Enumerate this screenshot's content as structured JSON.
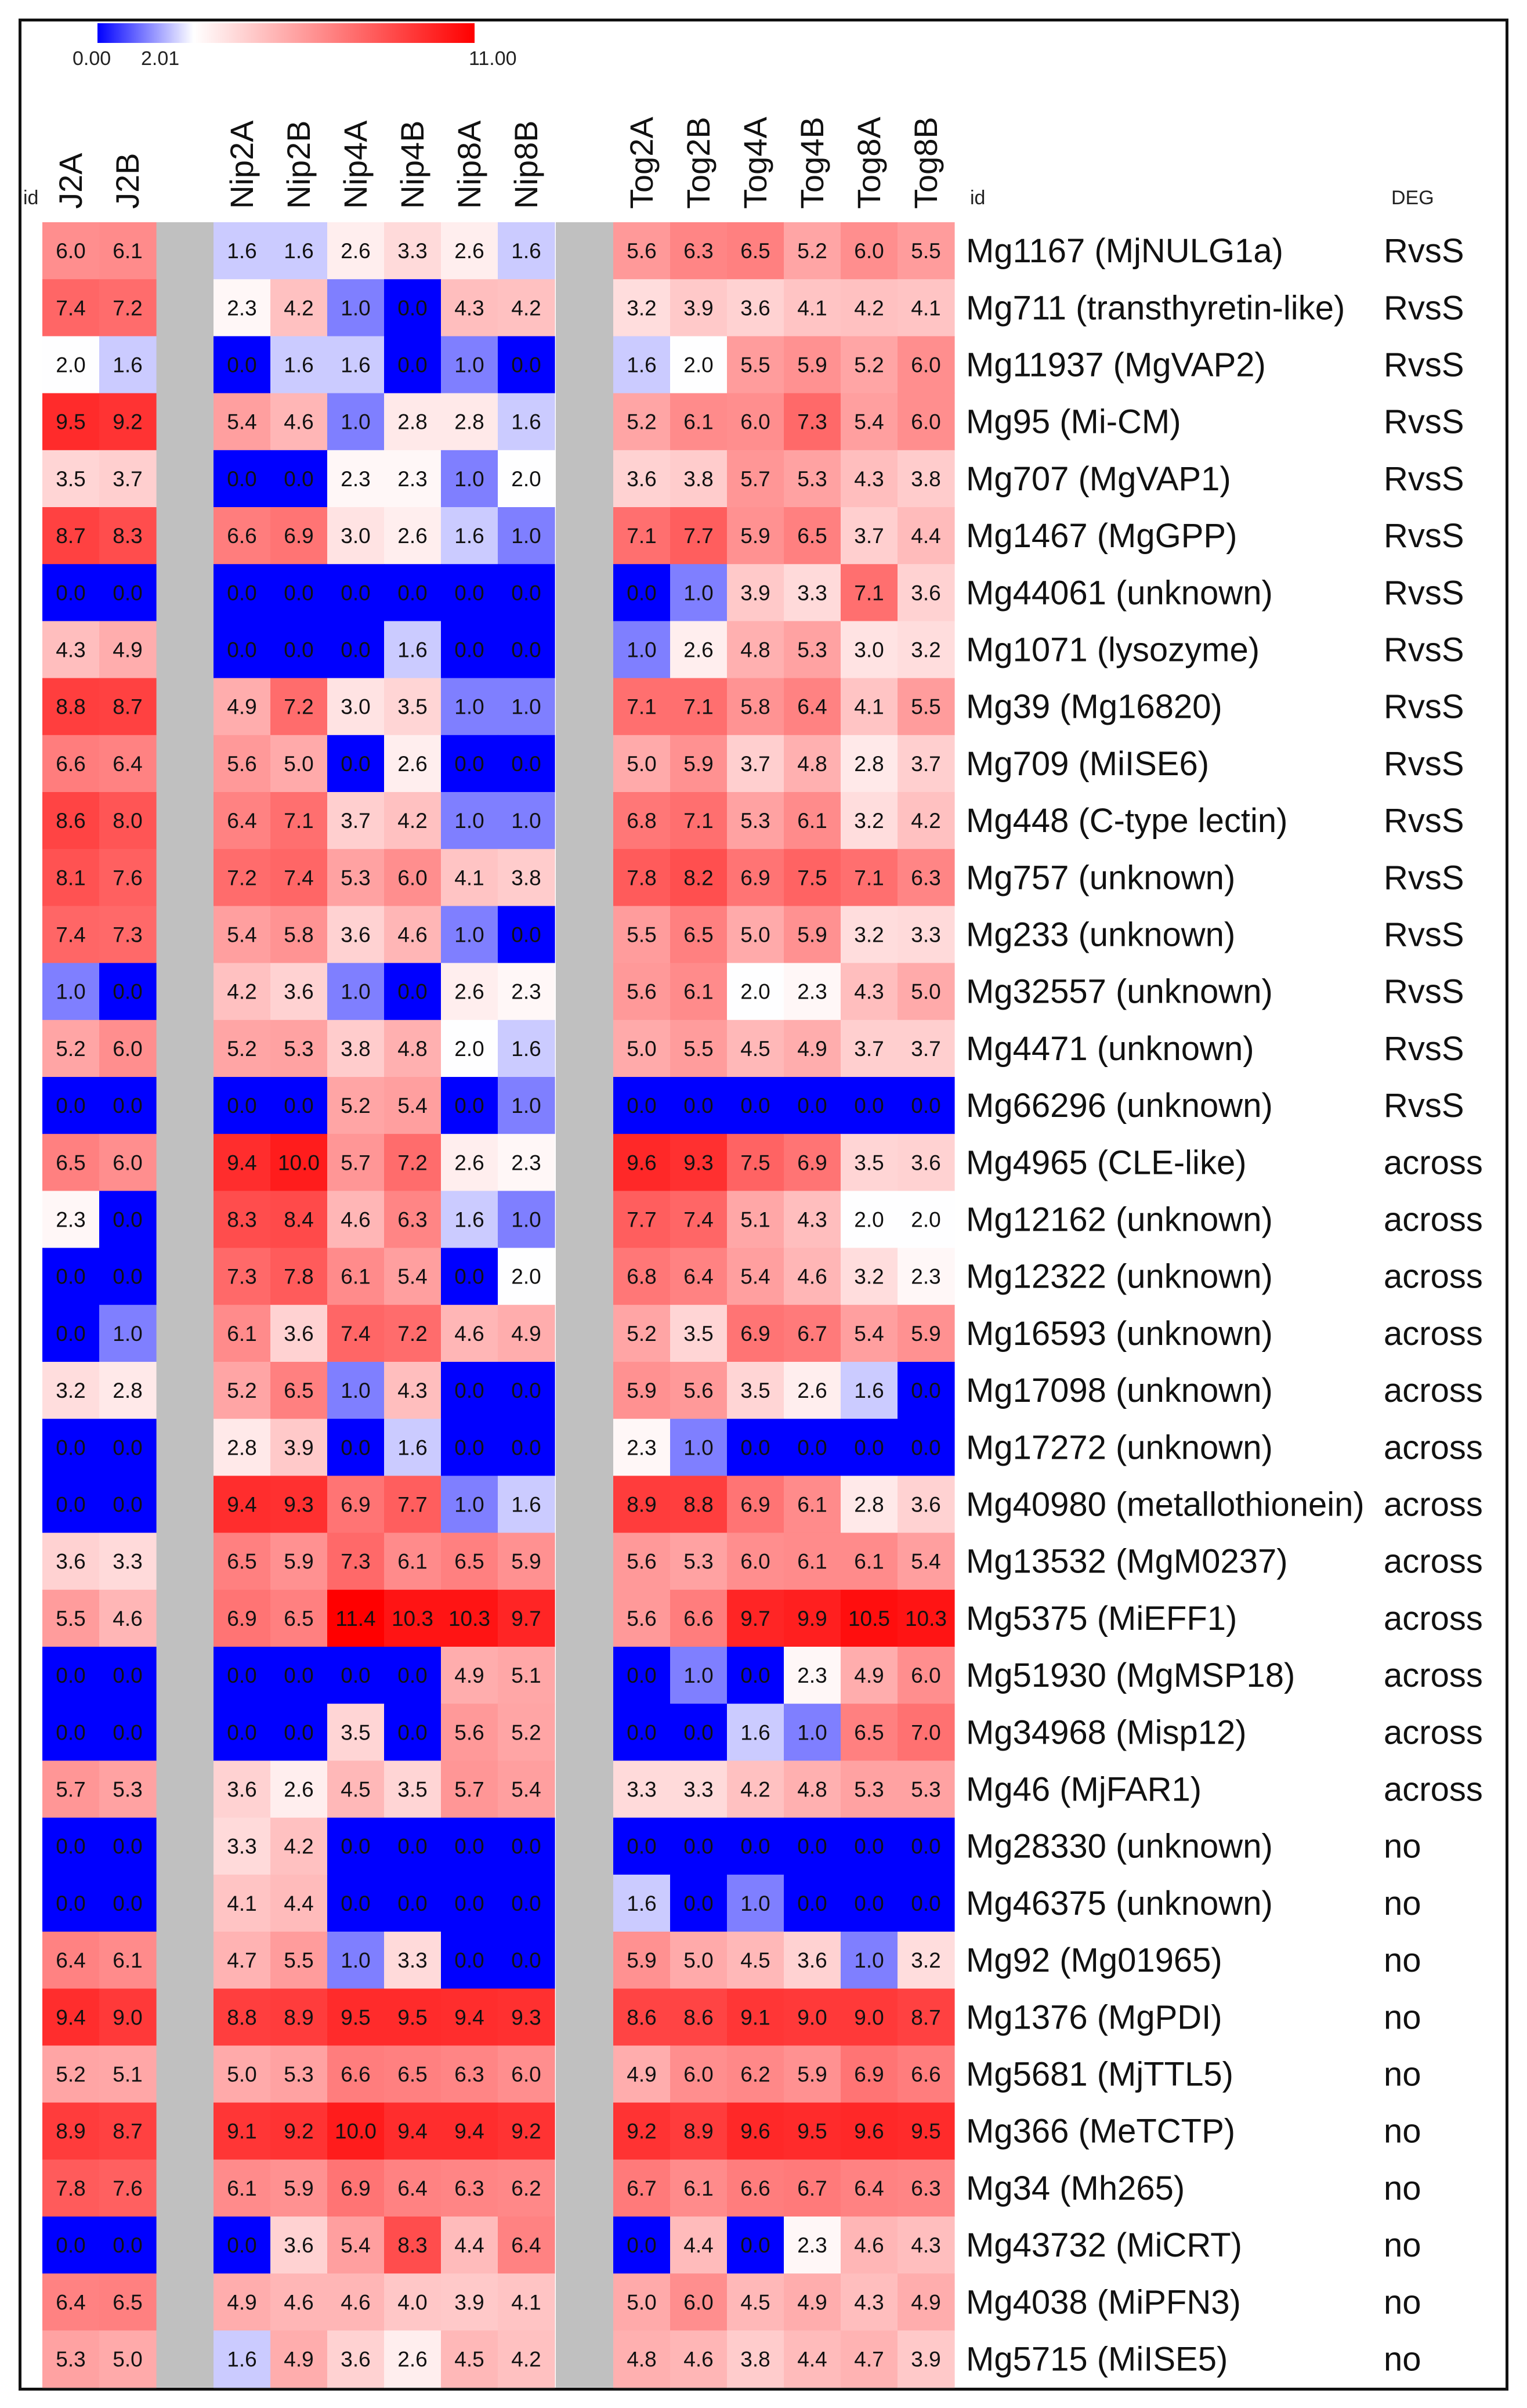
{
  "chart_data": {
    "type": "heatmap",
    "color_scale": {
      "min": 0.0,
      "mid": 2.01,
      "max": 11.0,
      "min_label": "0.00",
      "mid_label": "2.01",
      "max_label": "11.00",
      "low_color": "#0000ff",
      "mid_color": "#ffffff",
      "high_color": "#ff0000",
      "separator_color": "#c0c0c0"
    },
    "id_label_left": "id",
    "id_label_right": "id",
    "deg_header": "DEG",
    "column_groups": [
      {
        "columns": [
          "J2A",
          "J2B"
        ]
      },
      {
        "columns": [
          "Nip2A",
          "Nip2B",
          "Nip4A",
          "Nip4B",
          "Nip8A",
          "Nip8B"
        ]
      },
      {
        "columns": [
          "Tog2A",
          "Tog2B",
          "Tog4A",
          "Tog4B",
          "Tog8A",
          "Tog8B"
        ]
      }
    ],
    "rows": [
      {
        "label": "Mg1167 (MjNULG1a)",
        "deg": "RvsS",
        "values": [
          6.0,
          6.1,
          1.6,
          1.6,
          2.6,
          3.3,
          2.6,
          1.6,
          5.6,
          6.3,
          6.5,
          5.2,
          6.0,
          5.5
        ]
      },
      {
        "label": "Mg711 (transthyretin-like)",
        "deg": "RvsS",
        "values": [
          7.4,
          7.2,
          2.3,
          4.2,
          1.0,
          0.0,
          4.3,
          4.2,
          3.2,
          3.9,
          3.6,
          4.1,
          4.2,
          4.1
        ]
      },
      {
        "label": "Mg11937 (MgVAP2)",
        "deg": "RvsS",
        "values": [
          2.0,
          1.6,
          0.0,
          1.6,
          1.6,
          0.0,
          1.0,
          0.0,
          1.6,
          2.0,
          5.5,
          5.9,
          5.2,
          6.0
        ]
      },
      {
        "label": "Mg95 (Mi-CM)",
        "deg": "RvsS",
        "values": [
          9.5,
          9.2,
          5.4,
          4.6,
          1.0,
          2.8,
          2.8,
          1.6,
          5.2,
          6.1,
          6.0,
          7.3,
          5.4,
          6.0
        ]
      },
      {
        "label": "Mg707 (MgVAP1)",
        "deg": "RvsS",
        "values": [
          3.5,
          3.7,
          0.0,
          0.0,
          2.3,
          2.3,
          1.0,
          2.0,
          3.6,
          3.8,
          5.7,
          5.3,
          4.3,
          3.8
        ]
      },
      {
        "label": "Mg1467 (MgGPP)",
        "deg": "RvsS",
        "values": [
          8.7,
          8.3,
          6.6,
          6.9,
          3.0,
          2.6,
          1.6,
          1.0,
          7.1,
          7.7,
          5.9,
          6.5,
          3.7,
          4.4
        ]
      },
      {
        "label": "Mg44061 (unknown)",
        "deg": "RvsS",
        "values": [
          0.0,
          0.0,
          0.0,
          0.0,
          0.0,
          0.0,
          0.0,
          0.0,
          0.0,
          1.0,
          3.9,
          3.3,
          7.1,
          3.6
        ]
      },
      {
        "label": "Mg1071 (lysozyme)",
        "deg": "RvsS",
        "values": [
          4.3,
          4.9,
          0.0,
          0.0,
          0.0,
          1.6,
          0.0,
          0.0,
          1.0,
          2.6,
          4.8,
          5.3,
          3.0,
          3.2
        ]
      },
      {
        "label": "Mg39 (Mg16820)",
        "deg": "RvsS",
        "values": [
          8.8,
          8.7,
          4.9,
          7.2,
          3.0,
          3.5,
          1.0,
          1.0,
          7.1,
          7.1,
          5.8,
          6.4,
          4.1,
          5.5
        ]
      },
      {
        "label": "Mg709 (MiISE6)",
        "deg": "RvsS",
        "values": [
          6.6,
          6.4,
          5.6,
          5.0,
          0.0,
          2.6,
          0.0,
          0.0,
          5.0,
          5.9,
          3.7,
          4.8,
          2.8,
          3.7
        ]
      },
      {
        "label": "Mg448 (C-type lectin)",
        "deg": "RvsS",
        "values": [
          8.6,
          8.0,
          6.4,
          7.1,
          3.7,
          4.2,
          1.0,
          1.0,
          6.8,
          7.1,
          5.3,
          6.1,
          3.2,
          4.2
        ]
      },
      {
        "label": "Mg757 (unknown)",
        "deg": "RvsS",
        "values": [
          8.1,
          7.6,
          7.2,
          7.4,
          5.3,
          6.0,
          4.1,
          3.8,
          7.8,
          8.2,
          6.9,
          7.5,
          7.1,
          6.3
        ]
      },
      {
        "label": "Mg233 (unknown)",
        "deg": "RvsS",
        "values": [
          7.4,
          7.3,
          5.4,
          5.8,
          3.6,
          4.6,
          1.0,
          0.0,
          5.5,
          6.5,
          5.0,
          5.9,
          3.2,
          3.3
        ]
      },
      {
        "label": "Mg32557 (unknown)",
        "deg": "RvsS",
        "values": [
          1.0,
          0.0,
          4.2,
          3.6,
          1.0,
          0.0,
          2.6,
          2.3,
          5.6,
          6.1,
          2.0,
          2.3,
          4.3,
          5.0
        ]
      },
      {
        "label": "Mg4471 (unknown)",
        "deg": "RvsS",
        "values": [
          5.2,
          6.0,
          5.2,
          5.3,
          3.8,
          4.8,
          2.0,
          1.6,
          5.0,
          5.5,
          4.5,
          4.9,
          3.7,
          3.7
        ]
      },
      {
        "label": "Mg66296 (unknown)",
        "deg": "RvsS",
        "values": [
          0.0,
          0.0,
          0.0,
          0.0,
          5.2,
          5.4,
          0.0,
          1.0,
          0.0,
          0.0,
          0.0,
          0.0,
          0.0,
          0.0
        ]
      },
      {
        "label": "Mg4965 (CLE-like)",
        "deg": "across",
        "values": [
          6.5,
          6.0,
          9.4,
          10.0,
          5.7,
          7.2,
          2.6,
          2.3,
          9.6,
          9.3,
          7.5,
          6.9,
          3.5,
          3.6
        ]
      },
      {
        "label": "Mg12162 (unknown)",
        "deg": "across",
        "values": [
          2.3,
          0.0,
          8.3,
          8.4,
          4.6,
          6.3,
          1.6,
          1.0,
          7.7,
          7.4,
          5.1,
          4.3,
          2.0,
          2.0
        ]
      },
      {
        "label": "Mg12322 (unknown)",
        "deg": "across",
        "values": [
          0.0,
          0.0,
          7.3,
          7.8,
          6.1,
          5.4,
          0.0,
          2.0,
          6.8,
          6.4,
          5.4,
          4.6,
          3.2,
          2.3
        ]
      },
      {
        "label": "Mg16593 (unknown)",
        "deg": "across",
        "values": [
          0.0,
          1.0,
          6.1,
          3.6,
          7.4,
          7.2,
          4.6,
          4.9,
          5.2,
          3.5,
          6.9,
          6.7,
          5.4,
          5.9
        ]
      },
      {
        "label": "Mg17098 (unknown)",
        "deg": "across",
        "values": [
          3.2,
          2.8,
          5.2,
          6.5,
          1.0,
          4.3,
          0.0,
          0.0,
          5.9,
          5.6,
          3.5,
          2.6,
          1.6,
          0.0
        ]
      },
      {
        "label": "Mg17272 (unknown)",
        "deg": "across",
        "values": [
          0.0,
          0.0,
          2.8,
          3.9,
          0.0,
          1.6,
          0.0,
          0.0,
          2.3,
          1.0,
          0.0,
          0.0,
          0.0,
          0.0
        ]
      },
      {
        "label": "Mg40980 (metallothionein)",
        "deg": "across",
        "values": [
          0.0,
          0.0,
          9.4,
          9.3,
          6.9,
          7.7,
          1.0,
          1.6,
          8.9,
          8.8,
          6.9,
          6.1,
          2.8,
          3.6
        ]
      },
      {
        "label": "Mg13532 (MgM0237)",
        "deg": "across",
        "values": [
          3.6,
          3.3,
          6.5,
          5.9,
          7.3,
          6.1,
          6.5,
          5.9,
          5.6,
          5.3,
          6.0,
          6.1,
          6.1,
          5.4
        ]
      },
      {
        "label": "Mg5375 (MiEFF1)",
        "deg": "across",
        "values": [
          5.5,
          4.6,
          6.9,
          6.5,
          11.4,
          10.3,
          10.3,
          9.7,
          5.6,
          6.6,
          9.7,
          9.9,
          10.5,
          10.3
        ]
      },
      {
        "label": "Mg51930 (MgMSP18)",
        "deg": "across",
        "values": [
          0.0,
          0.0,
          0.0,
          0.0,
          0.0,
          0.0,
          4.9,
          5.1,
          0.0,
          1.0,
          0.0,
          2.3,
          4.9,
          6.0
        ]
      },
      {
        "label": "Mg34968 (Misp12)",
        "deg": "across",
        "values": [
          0.0,
          0.0,
          0.0,
          0.0,
          3.5,
          0.0,
          5.6,
          5.2,
          0.0,
          0.0,
          1.6,
          1.0,
          6.5,
          7.0
        ]
      },
      {
        "label": "Mg46 (MjFAR1)",
        "deg": "across",
        "values": [
          5.7,
          5.3,
          3.6,
          2.6,
          4.5,
          3.5,
          5.7,
          5.4,
          3.3,
          3.3,
          4.2,
          4.8,
          5.3,
          5.3
        ]
      },
      {
        "label": "Mg28330 (unknown)",
        "deg": "no",
        "values": [
          0.0,
          0.0,
          3.3,
          4.2,
          0.0,
          0.0,
          0.0,
          0.0,
          0.0,
          0.0,
          0.0,
          0.0,
          0.0,
          0.0
        ]
      },
      {
        "label": "Mg46375 (unknown)",
        "deg": "no",
        "values": [
          0.0,
          0.0,
          4.1,
          4.4,
          0.0,
          0.0,
          0.0,
          0.0,
          1.6,
          0.0,
          1.0,
          0.0,
          0.0,
          0.0
        ]
      },
      {
        "label": "Mg92 (Mg01965)",
        "deg": "no",
        "values": [
          6.4,
          6.1,
          4.7,
          5.5,
          1.0,
          3.3,
          0.0,
          0.0,
          5.9,
          5.0,
          4.5,
          3.6,
          1.0,
          3.2
        ]
      },
      {
        "label": "Mg1376 (MgPDI)",
        "deg": "no",
        "values": [
          9.4,
          9.0,
          8.8,
          8.9,
          9.5,
          9.5,
          9.4,
          9.3,
          8.6,
          8.6,
          9.1,
          9.0,
          9.0,
          8.7
        ]
      },
      {
        "label": "Mg5681 (MjTTL5)",
        "deg": "no",
        "values": [
          5.2,
          5.1,
          5.0,
          5.3,
          6.6,
          6.5,
          6.3,
          6.0,
          4.9,
          6.0,
          6.2,
          5.9,
          6.9,
          6.6
        ]
      },
      {
        "label": "Mg366 (MeTCTP)",
        "deg": "no",
        "values": [
          8.9,
          8.7,
          9.1,
          9.2,
          10.0,
          9.4,
          9.4,
          9.2,
          9.2,
          8.9,
          9.6,
          9.5,
          9.6,
          9.5
        ]
      },
      {
        "label": "Mg34 (Mh265)",
        "deg": "no",
        "values": [
          7.8,
          7.6,
          6.1,
          5.9,
          6.9,
          6.4,
          6.3,
          6.2,
          6.7,
          6.1,
          6.6,
          6.7,
          6.4,
          6.3
        ]
      },
      {
        "label": "Mg43732 (MiCRT)",
        "deg": "no",
        "values": [
          0.0,
          0.0,
          0.0,
          3.6,
          5.4,
          8.3,
          4.4,
          6.4,
          0.0,
          4.4,
          0.0,
          2.3,
          4.6,
          4.3
        ]
      },
      {
        "label": "Mg4038 (MiPFN3)",
        "deg": "no",
        "values": [
          6.4,
          6.5,
          4.9,
          4.6,
          4.6,
          4.0,
          3.9,
          4.1,
          5.0,
          6.0,
          4.5,
          4.9,
          4.3,
          4.9
        ]
      },
      {
        "label": "Mg5715 (MiISE5)",
        "deg": "no",
        "values": [
          5.3,
          5.0,
          1.6,
          4.9,
          3.6,
          2.6,
          4.5,
          4.2,
          4.8,
          4.6,
          3.8,
          4.4,
          4.7,
          3.9
        ]
      }
    ]
  }
}
